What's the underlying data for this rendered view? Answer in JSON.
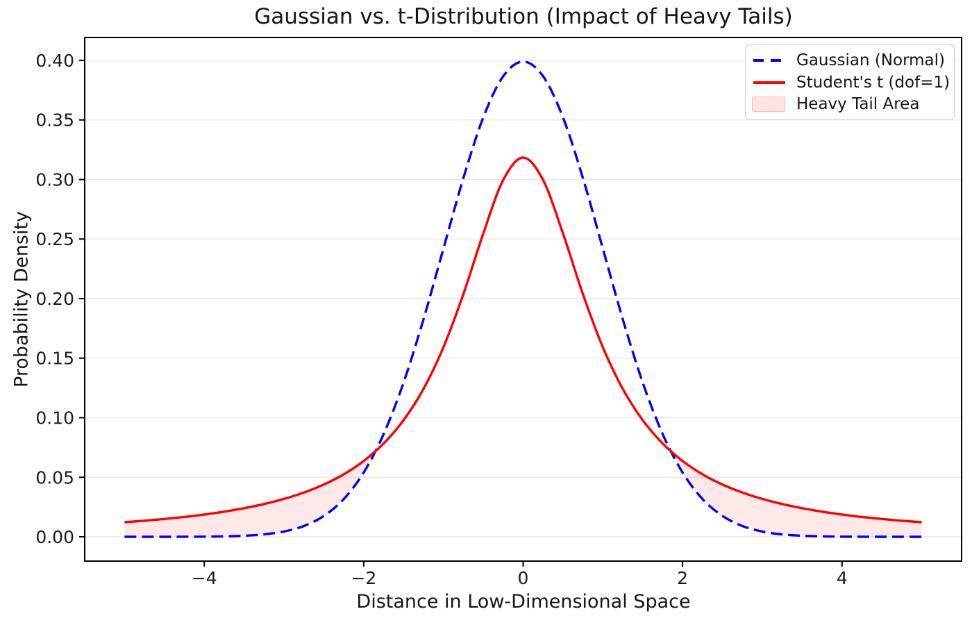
{
  "chart_data": {
    "type": "line",
    "title": "Gaussian vs. t-Distribution (Impact of Heavy Tails)",
    "xlabel": "Distance in Low-Dimensional Space",
    "ylabel": "Probability Density",
    "xlim": [
      -5.5,
      5.5
    ],
    "ylim": [
      -0.0204,
      0.4192
    ],
    "grid": {
      "axis": "y",
      "color": "#e9e9e9"
    },
    "legend_position": "upper right",
    "xticks": [
      {
        "value": -4,
        "label": "−4"
      },
      {
        "value": -2,
        "label": "−2"
      },
      {
        "value": 0,
        "label": "0"
      },
      {
        "value": 2,
        "label": "2"
      },
      {
        "value": 4,
        "label": "4"
      }
    ],
    "yticks": [
      {
        "value": 0.0,
        "label": "0.00"
      },
      {
        "value": 0.05,
        "label": "0.05"
      },
      {
        "value": 0.1,
        "label": "0.10"
      },
      {
        "value": 0.15,
        "label": "0.15"
      },
      {
        "value": 0.2,
        "label": "0.20"
      },
      {
        "value": 0.25,
        "label": "0.25"
      },
      {
        "value": 0.3,
        "label": "0.30"
      },
      {
        "value": 0.35,
        "label": "0.35"
      },
      {
        "value": 0.4,
        "label": "0.40"
      }
    ],
    "x": [
      -5,
      -4.75,
      -4.5,
      -4.25,
      -4,
      -3.75,
      -3.5,
      -3.25,
      -3,
      -2.75,
      -2.5,
      -2.25,
      -2,
      -1.75,
      -1.5,
      -1.25,
      -1,
      -0.75,
      -0.5,
      -0.25,
      0,
      0.25,
      0.5,
      0.75,
      1,
      1.25,
      1.5,
      1.75,
      2,
      2.25,
      2.5,
      2.75,
      3,
      3.25,
      3.5,
      3.75,
      4,
      4.25,
      4.5,
      4.75,
      5
    ],
    "series": [
      {
        "id": "gaussian",
        "name": "Gaussian (Normal)",
        "color": "#0000ff",
        "style": "dashed",
        "linewidth": 3.4,
        "values": [
          1e-06,
          5e-06,
          1.6e-05,
          4.8e-05,
          0.000134,
          0.000353,
          0.000873,
          0.002029,
          0.004432,
          0.009094,
          0.017528,
          0.03174,
          0.053991,
          0.086277,
          0.129518,
          0.182649,
          0.241971,
          0.301137,
          0.352065,
          0.386668,
          0.398942,
          0.386668,
          0.352065,
          0.301137,
          0.241971,
          0.182649,
          0.129518,
          0.086277,
          0.053991,
          0.03174,
          0.017528,
          0.009094,
          0.004432,
          0.002029,
          0.000873,
          0.000353,
          0.000134,
          4.8e-05,
          1.6e-05,
          5e-06,
          1e-06
        ]
      },
      {
        "id": "student-t",
        "name": "Student's t (dof=1)",
        "color": "#ff0000",
        "style": "solid",
        "linewidth": 3.4,
        "values": [
          0.012243,
          0.013509,
          0.014979,
          0.016698,
          0.018724,
          0.021132,
          0.024023,
          0.02753,
          0.031831,
          0.037175,
          0.043905,
          0.052504,
          0.063662,
          0.078353,
          0.097942,
          0.124218,
          0.159155,
          0.203718,
          0.254648,
          0.299586,
          0.31831,
          0.299586,
          0.254648,
          0.203718,
          0.159155,
          0.124218,
          0.097942,
          0.078353,
          0.063662,
          0.052504,
          0.043905,
          0.037175,
          0.031831,
          0.02753,
          0.024023,
          0.021132,
          0.018724,
          0.016698,
          0.014979,
          0.013509,
          0.012243
        ]
      }
    ],
    "fill": {
      "label": "Heavy Tail Area",
      "between": [
        "Student's t (dof=1)",
        "Gaussian (Normal)"
      ],
      "where": "student_t > gaussian",
      "color": "rgba(255,0,0,0.09)"
    },
    "legend": [
      {
        "label": "Gaussian (Normal)",
        "swatch": "dashed-line",
        "color": "#0000ff"
      },
      {
        "label": "Student's t (dof=1)",
        "swatch": "line",
        "color": "#ff0000"
      },
      {
        "label": "Heavy Tail Area",
        "swatch": "patch",
        "color": "rgba(255,0,0,0.11)",
        "edge_color": "rgba(255,0,0,0.18)"
      }
    ]
  }
}
